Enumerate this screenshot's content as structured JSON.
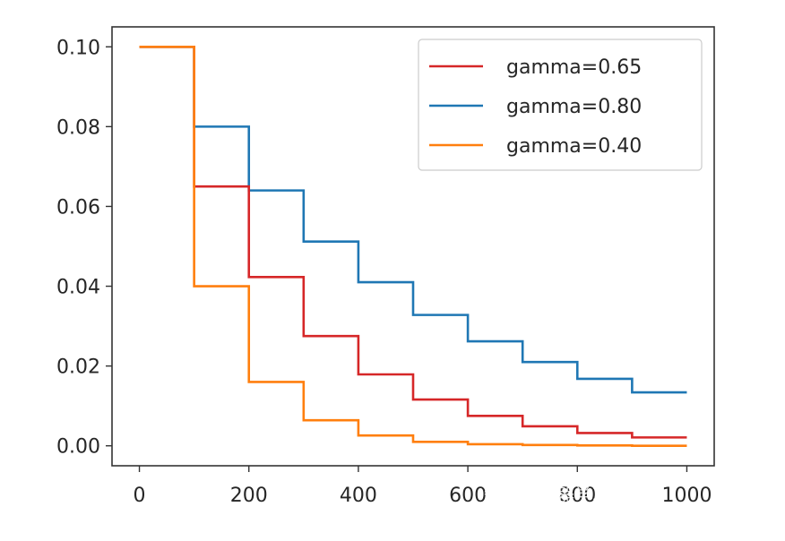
{
  "chart_data": {
    "type": "line",
    "step": true,
    "title": "",
    "xlabel": "",
    "ylabel": "",
    "xlim": [
      -50,
      1050
    ],
    "ylim": [
      -0.005,
      0.105
    ],
    "xticks": [
      0,
      200,
      400,
      600,
      800,
      1000
    ],
    "xtick_labels": [
      "0",
      "200",
      "400",
      "600",
      "800",
      "1000"
    ],
    "yticks": [
      0.0,
      0.02,
      0.04,
      0.06,
      0.08,
      0.1
    ],
    "ytick_labels": [
      "0.00",
      "0.02",
      "0.04",
      "0.06",
      "0.08",
      "0.10"
    ],
    "grid": false,
    "legend_position": "upper right",
    "x": [
      0,
      100,
      200,
      300,
      400,
      500,
      600,
      700,
      800,
      900,
      1000
    ],
    "series": [
      {
        "name": "gamma=0.65",
        "color": "#d62728",
        "values": [
          0.1,
          0.065,
          0.0423,
          0.0275,
          0.0179,
          0.0116,
          0.0075,
          0.0049,
          0.0032,
          0.0021,
          0.0021
        ]
      },
      {
        "name": "gamma=0.80",
        "color": "#1f77b4",
        "values": [
          0.1,
          0.08,
          0.064,
          0.0512,
          0.041,
          0.0328,
          0.0262,
          0.021,
          0.0168,
          0.0134,
          0.0134
        ]
      },
      {
        "name": "gamma=0.40",
        "color": "#ff7f0e",
        "values": [
          0.1,
          0.04,
          0.016,
          0.0064,
          0.0026,
          0.001,
          0.0004,
          0.0002,
          0.0001,
          0.0,
          0.0
        ]
      }
    ]
  },
  "watermark": "知乎 @机器学习小知识"
}
